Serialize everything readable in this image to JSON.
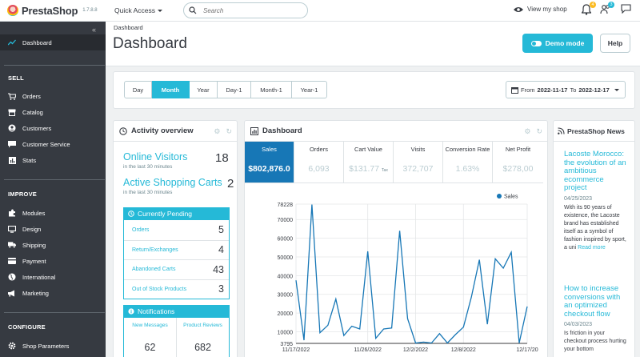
{
  "topbar": {
    "logo_name": "PrestaShop",
    "version": "1.7.8.8",
    "quick_access": "Quick Access",
    "search_placeholder": "Search",
    "view_shop": "View my shop",
    "orders_badge": "4",
    "customers_badge": "3"
  },
  "sidebar": {
    "dashboard": "Dashboard",
    "sections": [
      {
        "title": "SELL",
        "items": [
          "Orders",
          "Catalog",
          "Customers",
          "Customer Service",
          "Stats"
        ]
      },
      {
        "title": "IMPROVE",
        "items": [
          "Modules",
          "Design",
          "Shipping",
          "Payment",
          "International",
          "Marketing"
        ]
      },
      {
        "title": "CONFIGURE",
        "items": [
          "Shop Parameters"
        ]
      }
    ]
  },
  "header": {
    "breadcrumb": "Dashboard",
    "title": "Dashboard",
    "demo_mode": "Demo mode",
    "help": "Help"
  },
  "filters": {
    "periods": [
      "Day",
      "Month",
      "Year",
      "Day-1",
      "Month-1",
      "Year-1"
    ],
    "active": "Month",
    "from_label": "From",
    "from": "2022-11-17",
    "to_label": "To",
    "to": "2022-12-17"
  },
  "activity": {
    "title": "Activity overview",
    "online_visitors": "Online Visitors",
    "online_visitors_sub": "in the last 30 minutes",
    "online_visitors_value": "18",
    "active_carts": "Active Shopping Carts",
    "active_carts_sub": "in the last 30 minutes",
    "active_carts_value": "2",
    "pending_title": "Currently Pending",
    "pending": [
      {
        "label": "Orders",
        "value": "5"
      },
      {
        "label": "Return/Exchanges",
        "value": "4"
      },
      {
        "label": "Abandoned Carts",
        "value": "43"
      },
      {
        "label": "Out of Stock Products",
        "value": "3"
      }
    ],
    "notifications_title": "Notifications",
    "notifications": [
      {
        "label": "New Messages",
        "value": "62"
      },
      {
        "label": "Product Reviews",
        "value": "682"
      }
    ]
  },
  "dashboard": {
    "title": "Dashboard",
    "kpis": [
      {
        "label": "Sales",
        "value": "$802,876.0"
      },
      {
        "label": "Orders",
        "value": "6,093"
      },
      {
        "label": "Cart Value",
        "value": "$131.77",
        "suffix": "Tax"
      },
      {
        "label": "Visits",
        "value": "372,707"
      },
      {
        "label": "Conversion Rate",
        "value": "1.63%"
      },
      {
        "label": "Net Profit",
        "value": "$278,00"
      }
    ]
  },
  "chart_data": {
    "type": "line",
    "series": [
      {
        "name": "Sales",
        "values": [
          37500,
          5500,
          78000,
          9500,
          13500,
          27500,
          8000,
          13000,
          11500,
          53000,
          6500,
          11500,
          12000,
          64000,
          17000,
          4000,
          4500,
          4000,
          9000,
          4000,
          8500,
          12500,
          28500,
          48500,
          14000,
          49000,
          44000,
          52500,
          4000,
          23500
        ]
      }
    ],
    "x_tick_labels": [
      "11/17/2022",
      "11/26/2022",
      "12/2/2022",
      "12/8/2022",
      "12/17/20"
    ],
    "y_tick_labels": [
      "3795",
      "10000",
      "20000",
      "30000",
      "40000",
      "50000",
      "60000",
      "70000",
      "78228"
    ],
    "ylim": [
      3795,
      78228
    ],
    "color": "#1777b6",
    "legend_position": "top-right",
    "grid": true
  },
  "news": {
    "title": "PrestaShop News",
    "items": [
      {
        "title": "Lacoste Morocco: the evolution of an ambitious ecommerce project",
        "date": "04/25/2023",
        "body": "With its 90 years of existence, the Lacoste brand has established itself as a symbol of fashion inspired by sport, a uni",
        "more": "Read more"
      },
      {
        "title": "How to increase conversions with an optimized checkout flow",
        "date": "04/03/2023",
        "body": "Is friction in your checkout process hurting your bottom"
      }
    ]
  }
}
